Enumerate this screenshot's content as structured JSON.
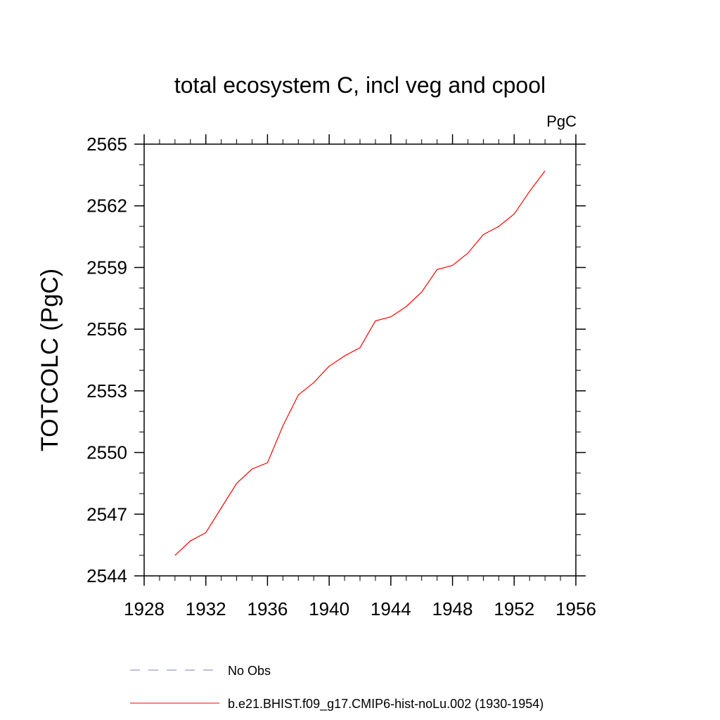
{
  "chart_data": {
    "type": "line",
    "title": "total ecosystem C, incl veg and cpool",
    "units": "PgC",
    "ylabel": "TOTCOLC  (PgC)",
    "xlabel": "",
    "xlim": [
      1928,
      1956
    ],
    "ylim": [
      2544,
      2565
    ],
    "x_ticks": [
      1928,
      1932,
      1936,
      1940,
      1944,
      1948,
      1952,
      1956
    ],
    "y_ticks": [
      2544,
      2547,
      2550,
      2553,
      2556,
      2559,
      2562,
      2565
    ],
    "x_tick_labels": [
      "1928",
      "1932",
      "1936",
      "1940",
      "1944",
      "1948",
      "1952",
      "1956"
    ],
    "y_tick_labels": [
      "2544",
      "2547",
      "2550",
      "2553",
      "2556",
      "2559",
      "2562",
      "2565"
    ],
    "x_minor_step": 1,
    "y_minor_step": 1,
    "grid": false,
    "legend_position": "bottom",
    "series": [
      {
        "name": "No Obs",
        "color": "#7f7fbf",
        "dash": "dashed",
        "x": [],
        "y": []
      },
      {
        "name": "b.e21.BHIST.f09_g17.CMIP6-hist-noLu.002 (1930-1954)",
        "color": "#ff0000",
        "dash": "solid",
        "x": [
          1930,
          1931,
          1932,
          1933,
          1934,
          1935,
          1936,
          1937,
          1938,
          1939,
          1940,
          1941,
          1942,
          1943,
          1944,
          1945,
          1946,
          1947,
          1948,
          1949,
          1950,
          1951,
          1952,
          1953,
          1954
        ],
        "y": [
          2545.0,
          2545.7,
          2546.1,
          2547.3,
          2548.5,
          2549.2,
          2549.5,
          2551.3,
          2552.8,
          2553.4,
          2554.2,
          2554.7,
          2555.1,
          2556.4,
          2556.6,
          2557.1,
          2557.8,
          2558.9,
          2559.1,
          2559.7,
          2560.6,
          2561.0,
          2561.6,
          2562.7,
          2563.7
        ]
      }
    ]
  }
}
